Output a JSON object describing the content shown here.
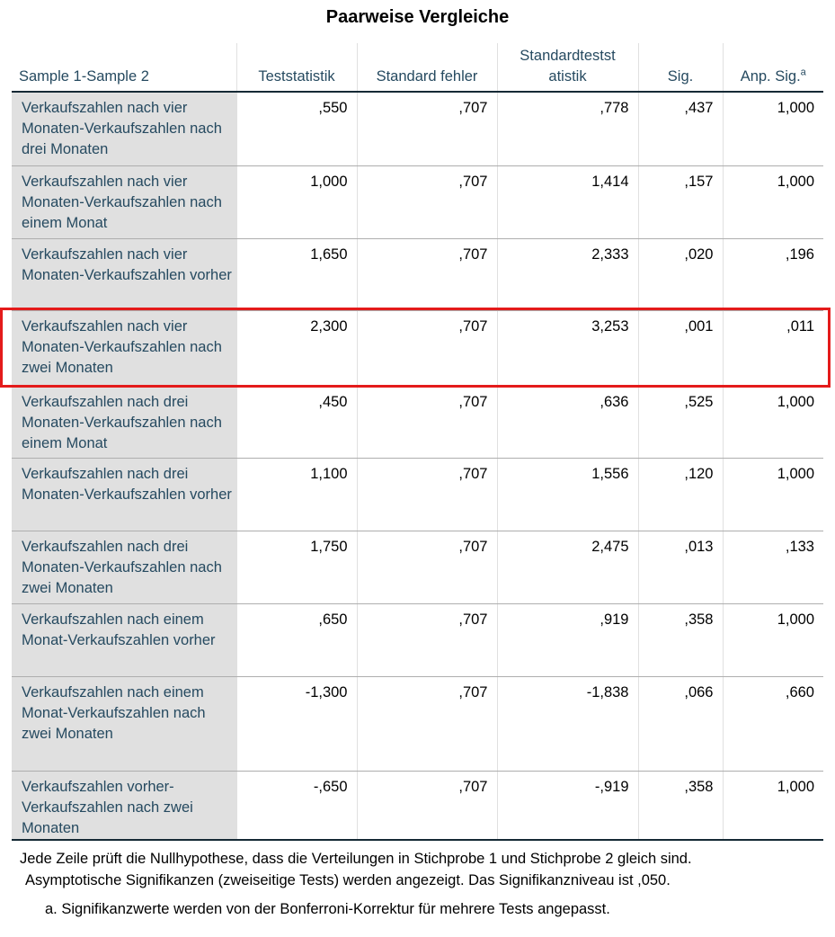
{
  "title": "Paarweise Vergleiche",
  "headers": {
    "sample": "Sample 1-Sample 2",
    "teststatistik": "Teststatistik",
    "standardfehler": "Standard fehler",
    "standardteststatistik": "Standardtestst atistik",
    "sig": "Sig.",
    "anp_sig": "Anp. Sig.",
    "anp_sig_footnote_marker": "a"
  },
  "rows": [
    {
      "label": "Verkaufszahlen nach vier Monaten-Verkaufszahlen nach drei Monaten",
      "teststatistik": ",550",
      "standardfehler": ",707",
      "standardteststatistik": ",778",
      "sig": ",437",
      "anp_sig": "1,000"
    },
    {
      "label": "Verkaufszahlen nach vier Monaten-Verkaufszahlen nach einem Monat",
      "teststatistik": "1,000",
      "standardfehler": ",707",
      "standardteststatistik": "1,414",
      "sig": ",157",
      "anp_sig": "1,000"
    },
    {
      "label": "Verkaufszahlen nach vier Monaten-Verkaufszahlen vorher",
      "teststatistik": "1,650",
      "standardfehler": ",707",
      "standardteststatistik": "2,333",
      "sig": ",020",
      "anp_sig": ",196"
    },
    {
      "label": "Verkaufszahlen nach vier Monaten-Verkaufszahlen nach zwei Monaten",
      "teststatistik": "2,300",
      "standardfehler": ",707",
      "standardteststatistik": "3,253",
      "sig": ",001",
      "anp_sig": ",011"
    },
    {
      "label": "Verkaufszahlen nach drei Monaten-Verkaufszahlen nach einem Monat",
      "teststatistik": ",450",
      "standardfehler": ",707",
      "standardteststatistik": ",636",
      "sig": ",525",
      "anp_sig": "1,000"
    },
    {
      "label": "Verkaufszahlen nach drei Monaten-Verkaufszahlen vorher",
      "teststatistik": "1,100",
      "standardfehler": ",707",
      "standardteststatistik": "1,556",
      "sig": ",120",
      "anp_sig": "1,000"
    },
    {
      "label": "Verkaufszahlen nach drei Monaten-Verkaufszahlen nach zwei Monaten",
      "teststatistik": "1,750",
      "standardfehler": ",707",
      "standardteststatistik": "2,475",
      "sig": ",013",
      "anp_sig": ",133"
    },
    {
      "label": "Verkaufszahlen nach einem Monat-Verkaufszahlen vorher",
      "teststatistik": ",650",
      "standardfehler": ",707",
      "standardteststatistik": ",919",
      "sig": ",358",
      "anp_sig": "1,000"
    },
    {
      "label": "Verkaufszahlen nach einem Monat-Verkaufszahlen nach zwei Monaten",
      "teststatistik": "-1,300",
      "standardfehler": ",707",
      "standardteststatistik": "-1,838",
      "sig": ",066",
      "anp_sig": ",660"
    },
    {
      "label": "Verkaufszahlen vorher-Verkaufszahlen nach zwei Monaten",
      "teststatistik": "-,650",
      "standardfehler": ",707",
      "standardteststatistik": "-,919",
      "sig": ",358",
      "anp_sig": "1,000"
    }
  ],
  "footnotes": {
    "line1": "Jede Zeile prüft die Nullhypothese, dass die Verteilungen in Stichprobe 1 und Stichprobe 2 gleich sind.",
    "line2": "Asymptotische Signifikanzen (zweiseitige Tests) werden angezeigt. Das Signifikanzniveau ist ,050.",
    "line3": "a. Signifikanzwerte werden von der Bonferroni-Korrektur für mehrere Tests angepasst."
  },
  "highlight": {
    "row_index": 3,
    "color": "#e41b1b"
  },
  "colors": {
    "label_text": "#264a60",
    "label_bg": "#e0e0e0",
    "rule": "#152935"
  }
}
